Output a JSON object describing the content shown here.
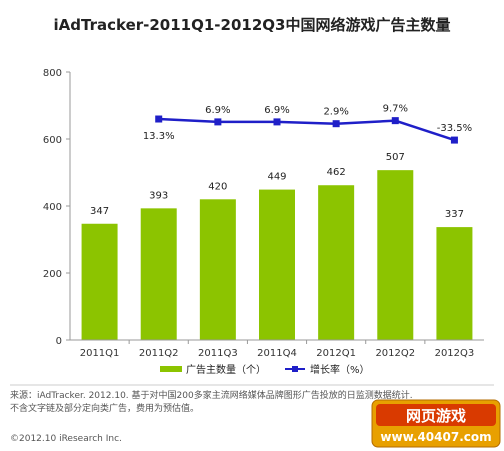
{
  "chart_data": {
    "type": "bar",
    "title": "iAdTracker-2011Q1-2012Q3中国网络游戏广告主数量",
    "categories": [
      "2011Q1",
      "2011Q2",
      "2011Q3",
      "2011Q4",
      "2012Q1",
      "2012Q2",
      "2012Q3"
    ],
    "ylim": [
      0,
      800
    ],
    "yticks": [
      0,
      200,
      400,
      600,
      800
    ],
    "series": [
      {
        "name": "广告主数量（个）",
        "type": "bar",
        "values": [
          347,
          393,
          420,
          449,
          462,
          507,
          337
        ],
        "color": "#8cc400"
      },
      {
        "name": "增长率（%）",
        "type": "line",
        "values": [
          null,
          13.3,
          6.9,
          6.9,
          2.9,
          9.7,
          -33.5
        ],
        "labels": [
          "",
          "13.3%",
          "6.9%",
          "6.9%",
          "2.9%",
          "9.7%",
          "-33.5%"
        ],
        "color": "#1f1fc8"
      }
    ],
    "legend": "bottom",
    "grid": false
  },
  "footnote": {
    "line1": "来源：iAdTracker. 2012.10. 基于对中国200多家主流网络媒体品牌图形广告投放的日监测数据统计.",
    "line2": "不含文字链及部分定向类广告，费用为预估值。"
  },
  "copyright": "©2012.10 iResearch Inc.",
  "watermark": {
    "text": "网页游戏",
    "url": "www.40407.com"
  }
}
